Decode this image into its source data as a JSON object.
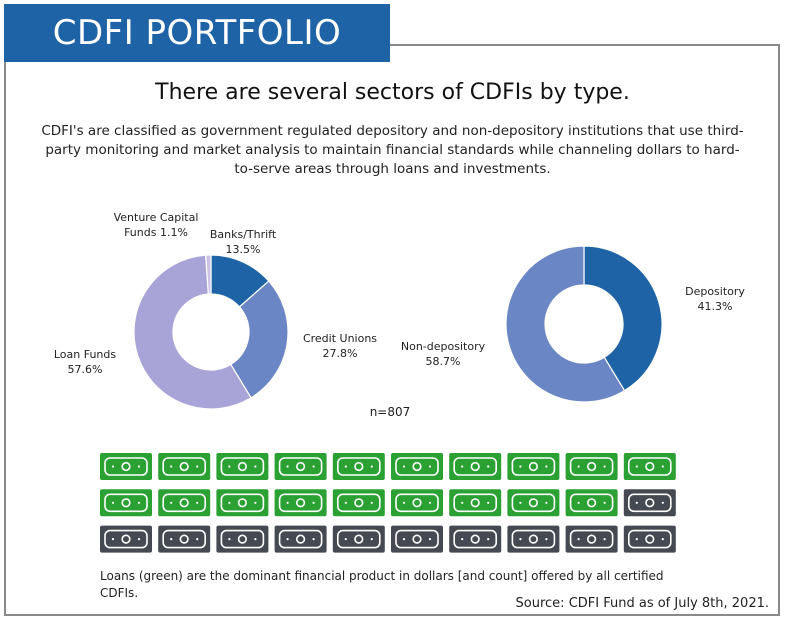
{
  "header": {
    "banner": "CDFI PORTFOLIO"
  },
  "headline": "There are several sectors of CDFIs by type.",
  "description": "CDFI's are classified as government regulated depository and non-depository institutions that use third-party monitoring and market analysis to maintain financial standards while channeling dollars to hard-to-serve areas through loans and investments.",
  "chart_data": [
    {
      "type": "pie",
      "donut": true,
      "categories": [
        "Banks/Thrift",
        "Credit Unions",
        "Loan Funds",
        "Venture Capital Funds"
      ],
      "values": [
        13.5,
        27.8,
        57.6,
        1.1
      ],
      "labels": [
        [
          "Banks/Thrift",
          "13.5%"
        ],
        [
          "Credit Unions",
          "27.8%"
        ],
        [
          "Loan Funds",
          "57.6%"
        ],
        [
          "Venture Capital",
          "Funds 1.1%"
        ]
      ],
      "colors": [
        "#1e63a6",
        "#6b86c4",
        "#a9a4d8",
        "#cbc3e6"
      ],
      "legend": "none"
    },
    {
      "type": "pie",
      "donut": true,
      "categories": [
        "Depository",
        "Non-depository"
      ],
      "values": [
        41.3,
        58.7
      ],
      "labels": [
        [
          "Depository",
          "41.3%"
        ],
        [
          "Non-depository",
          "58.7%"
        ]
      ],
      "colors": [
        "#1e63a6",
        "#6b86c4"
      ],
      "legend": "none"
    }
  ],
  "sample_size": "n=807",
  "bills": {
    "rows": 3,
    "cols": 10,
    "green_count": 19,
    "total": 30,
    "green_color": "#2aa132",
    "gray_color": "#454a52",
    "icon": "money-bill-icon"
  },
  "note": "Loans (green) are the dominant financial product in dollars [and count] offered by all certified CDFIs.",
  "source": "Source: CDFI Fund as of July 8th, 2021."
}
